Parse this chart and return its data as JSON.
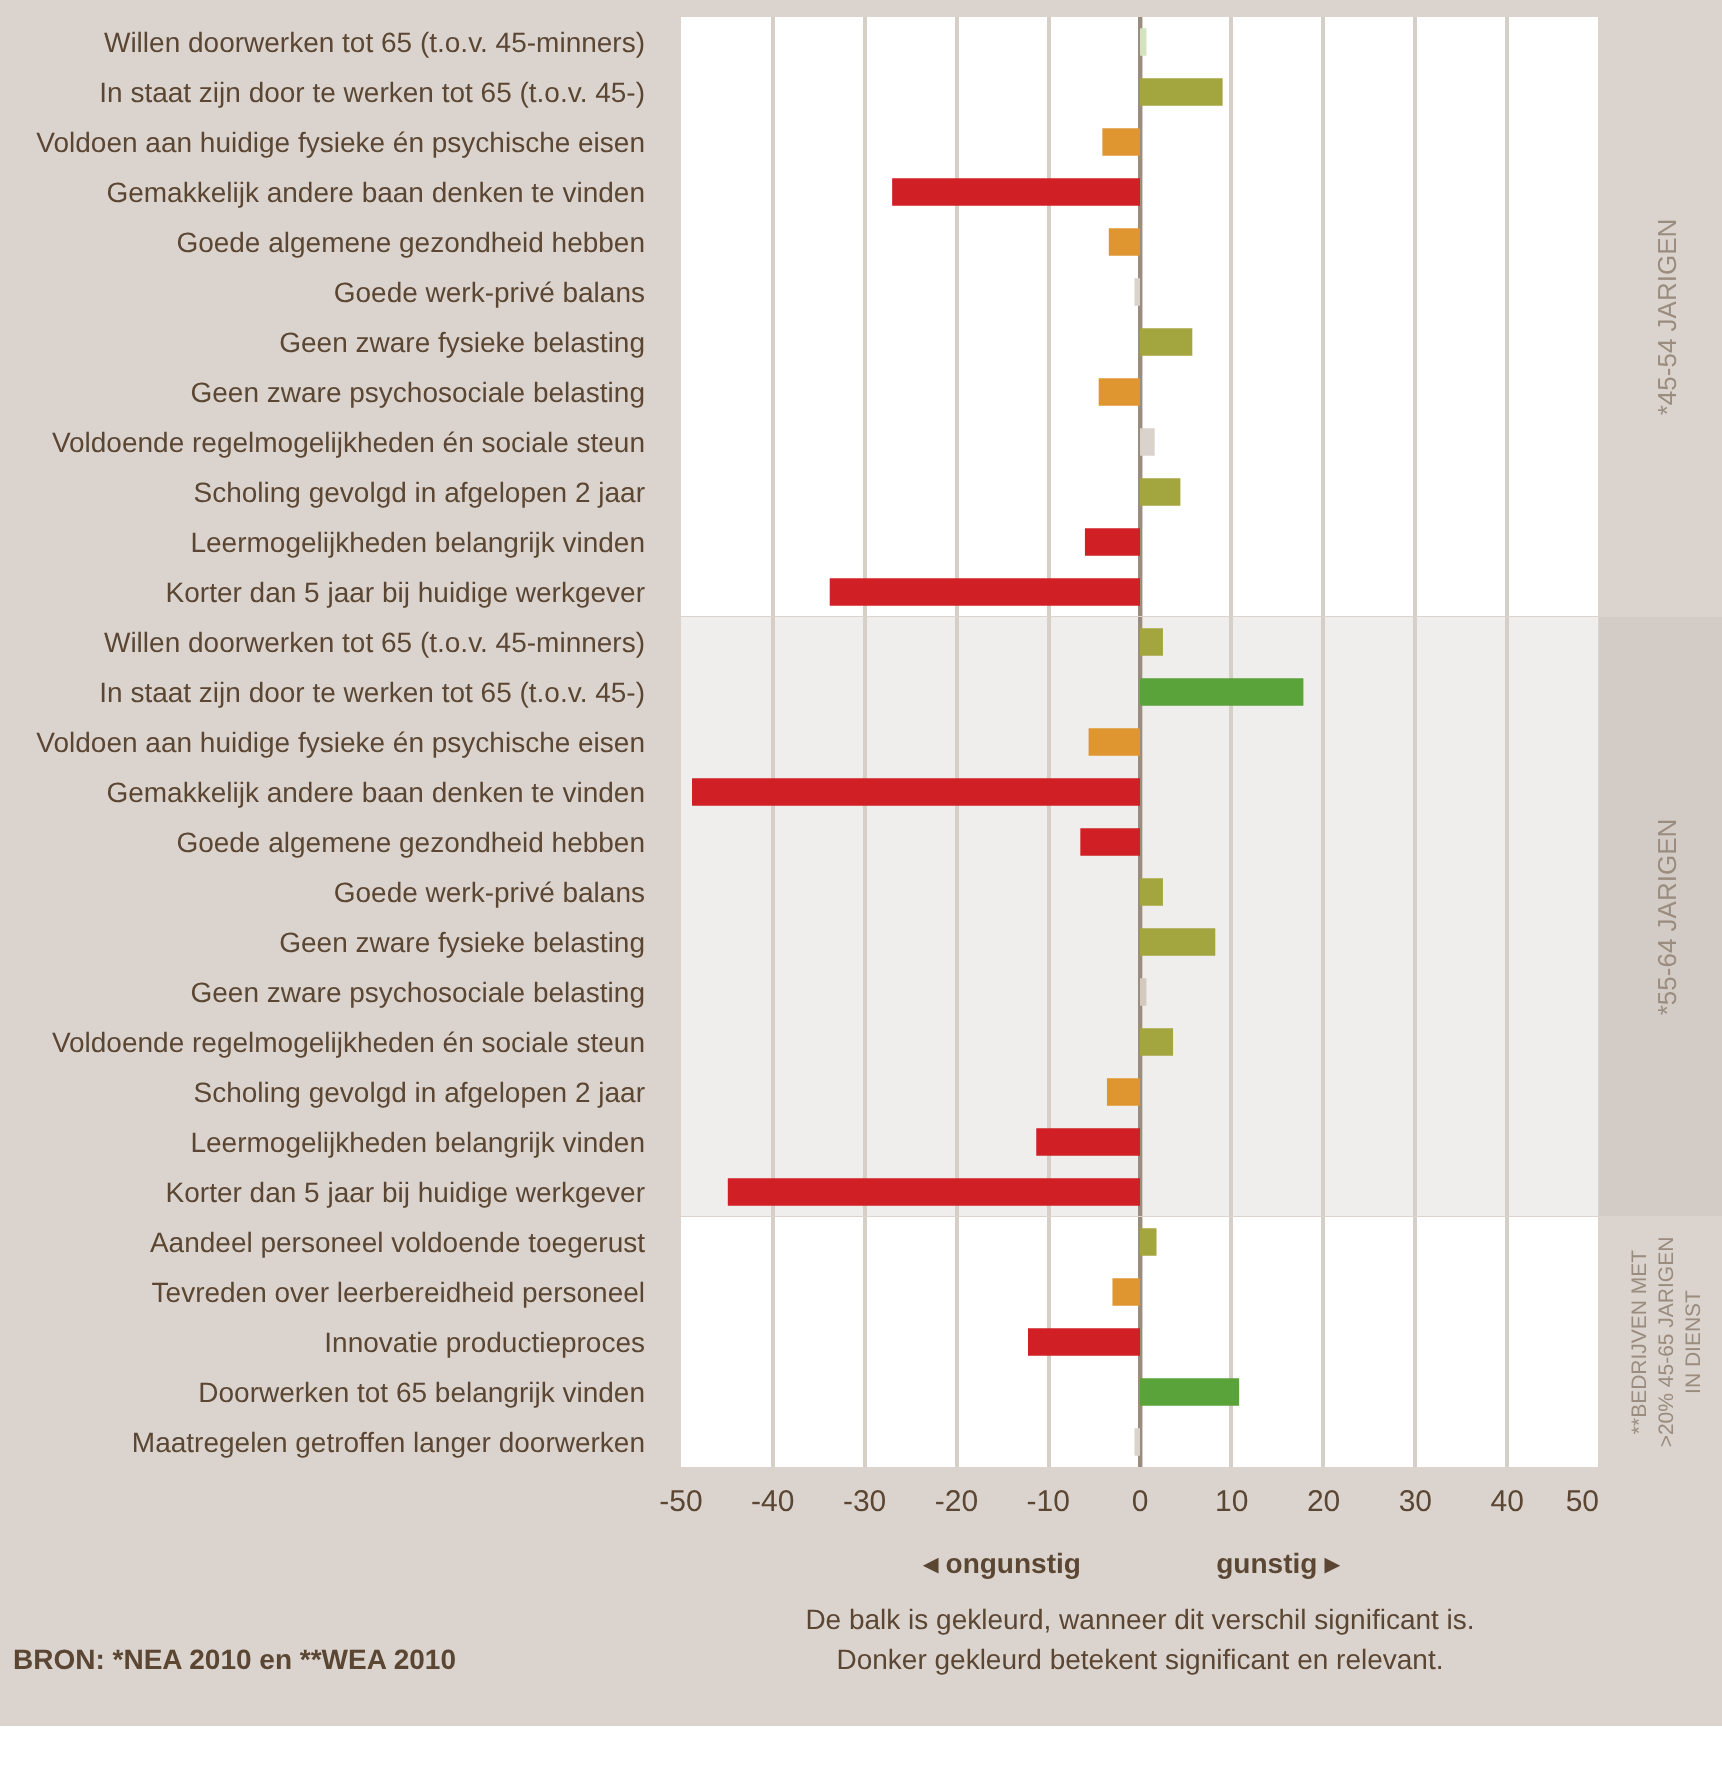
{
  "chart_data": [
    {
      "type": "bar",
      "orientation": "horizontal",
      "y2label": "*45-54 JARIGEN",
      "categories": [
        "Willen doorwerken tot 65 (t.o.v. 45-minners)",
        "In staat zijn door te werken tot 65 (t.o.v. 45-)",
        "Voldoen aan huidige fysieke én psychische eisen",
        "Gemakkelijk andere baan denken te vinden",
        "Goede algemene gezondheid hebben",
        "Goede werk-privé balans",
        "Geen zware fysieke belasting",
        "Geen zware psychosociale belasting",
        "Voldoende regelmogelijkheden én sociale steun",
        "Scholing gevolgd in afgelopen 2 jaar",
        "Leermogelijkheden belangrijk vinden",
        "Korter dan 5 jaar bij huidige werkgever"
      ],
      "values": [
        0.7,
        9.0,
        -4.1,
        -27.0,
        -3.4,
        -0.6,
        5.7,
        -4.5,
        1.6,
        4.4,
        -6.0,
        -33.8
      ],
      "colors": [
        "#d3e3c0",
        "#a3a53e",
        "#e09630",
        "#d01f25",
        "#e09630",
        "#dad3cc",
        "#a3a53e",
        "#e09630",
        "#dad3cc",
        "#a3a53e",
        "#d01f25",
        "#d01f25"
      ],
      "xlim": [
        -50,
        50
      ],
      "xticks": [
        -50,
        -40,
        -30,
        -20,
        -10,
        0,
        10,
        20,
        30,
        40,
        50
      ],
      "grid": "x",
      "tick_labels": "y",
      "ref_lines": [
        {
          "axis": "x",
          "value": 0,
          "color": "#9a8c7e"
        }
      ]
    },
    {
      "type": "bar",
      "orientation": "horizontal",
      "y2label": "*55-64 JARIGEN",
      "categories": [
        "Willen doorwerken tot 65 (t.o.v. 45-minners)",
        "In staat zijn door te werken tot 65 (t.o.v. 45-)",
        "Voldoen aan huidige fysieke én psychische eisen",
        "Gemakkelijk andere baan denken te vinden",
        "Goede algemene gezondheid hebben",
        "Goede werk-privé balans",
        "Geen zware fysieke belasting",
        "Geen zware psychosociale belasting",
        "Voldoende regelmogelijkheden én sociale steun",
        "Scholing gevolgd in afgelopen 2 jaar",
        "Leermogelijkheden belangrijk vinden",
        "Korter dan 5 jaar bij huidige werkgever"
      ],
      "values": [
        2.5,
        17.8,
        -5.6,
        -48.8,
        -6.5,
        2.5,
        8.2,
        0.7,
        3.6,
        -3.6,
        -11.3,
        -44.9
      ],
      "colors": [
        "#a3a53e",
        "#5aa23a",
        "#e09630",
        "#d01f25",
        "#d01f25",
        "#a3a53e",
        "#a3a53e",
        "#d3c9bf",
        "#a3a53e",
        "#e09630",
        "#d01f25",
        "#d01f25"
      ],
      "xlim": [
        -50,
        50
      ],
      "xticks": [
        -50,
        -40,
        -30,
        -20,
        -10,
        0,
        10,
        20,
        30,
        40,
        50
      ],
      "grid": "x",
      "tick_labels": "y",
      "ref_lines": [
        {
          "axis": "x",
          "value": 0,
          "color": "#9a8c7e"
        }
      ]
    },
    {
      "type": "bar",
      "orientation": "horizontal",
      "y2label": "**BEDRIJVEN MET\n>20% 45-65 JARIGEN\nIN DIENST",
      "categories": [
        "Aandeel personeel voldoende toegerust",
        "Tevreden over leerbereidheid personeel",
        "Innovatie productieproces",
        "Doorwerken tot 65 belangrijk vinden",
        "Maatregelen getroffen langer doorwerken"
      ],
      "values": [
        1.8,
        -3.0,
        -12.2,
        10.8,
        -0.6
      ],
      "colors": [
        "#a3a53e",
        "#e09630",
        "#d01f25",
        "#5aa23a",
        "#dad3cc"
      ],
      "xlim": [
        -50,
        50
      ],
      "xticks": [
        -50,
        -40,
        -30,
        -20,
        -10,
        0,
        10,
        20,
        30,
        40,
        50
      ],
      "grid": "x",
      "ref_lines": [
        {
          "axis": "x",
          "value": 0,
          "color": "#9a8c7e"
        }
      ],
      "annotations": [
        "◂ ongunstig",
        "gunstig ▸",
        "De balk is gekleurd, wanneer dit verschil significant is.\nDonker gekleurd betekent significant en relevant.",
        "BRON: *NEA 2010 en **WEA 2010"
      ]
    }
  ]
}
